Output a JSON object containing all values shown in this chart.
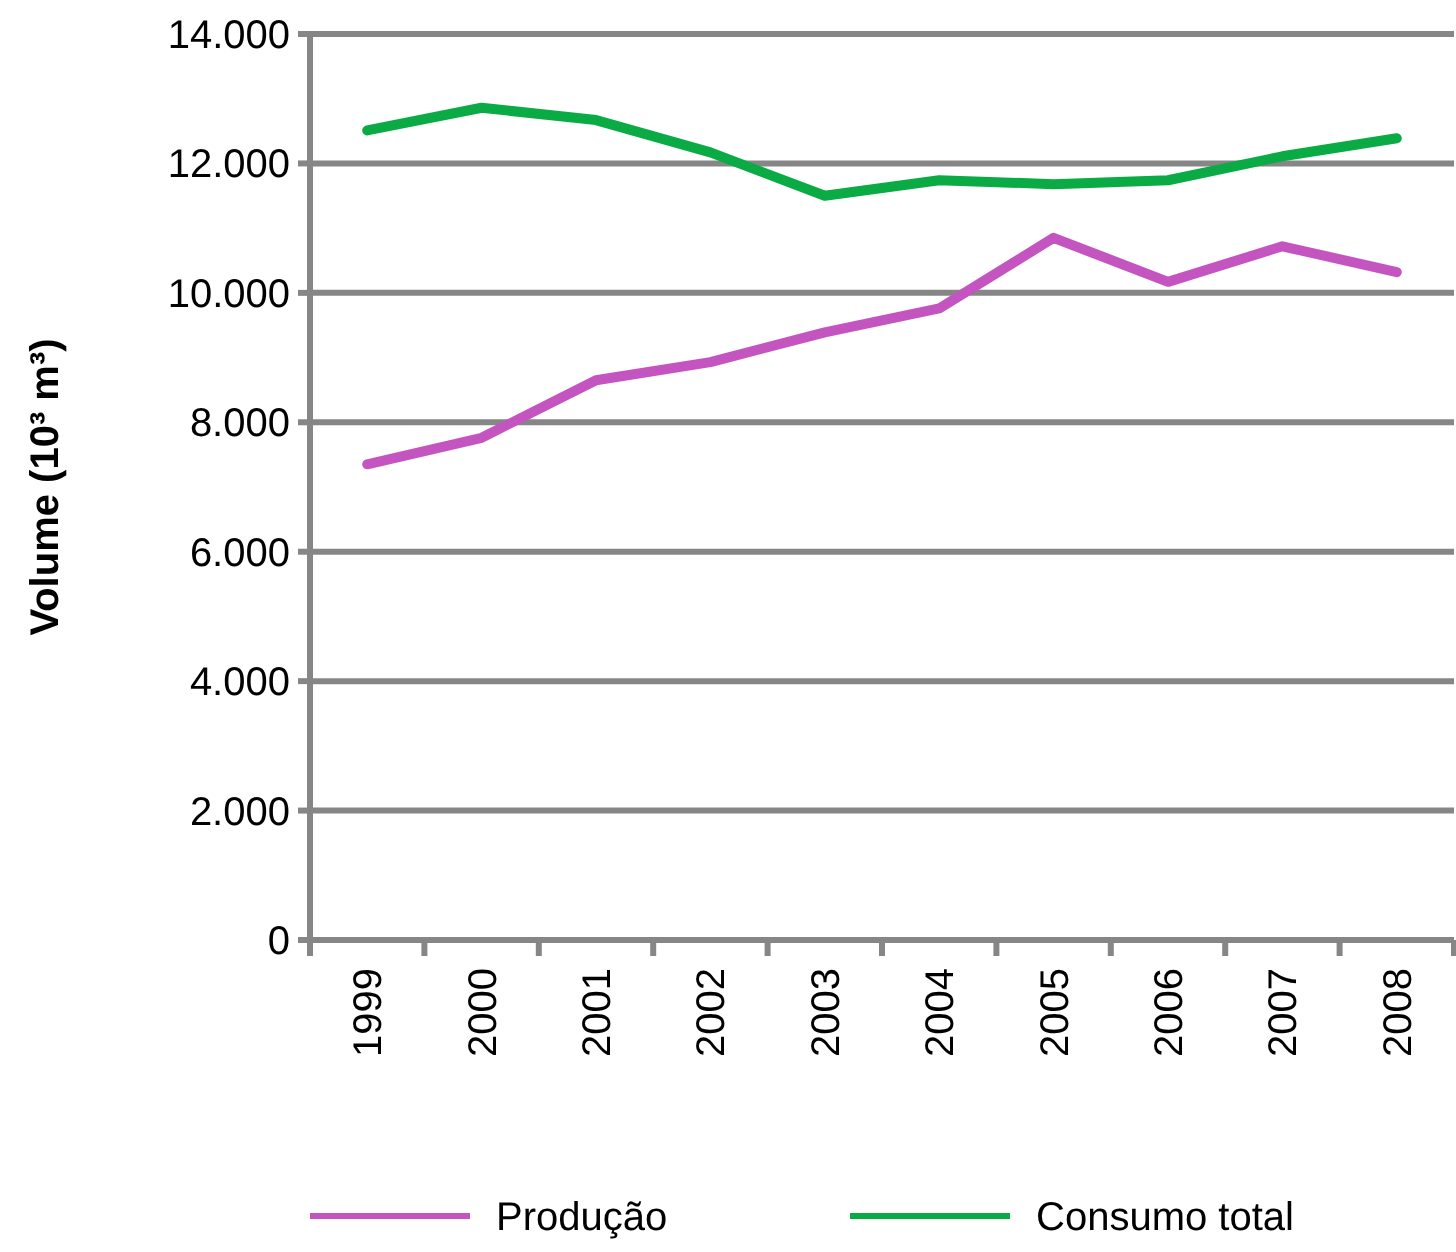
{
  "chart_data": {
    "type": "line",
    "ylabel": "Volume (10³ m³)",
    "categories": [
      "1999",
      "2000",
      "2001",
      "2002",
      "2003",
      "2004",
      "2005",
      "2006",
      "2007",
      "2008"
    ],
    "series": [
      {
        "name": "Produção",
        "color": "#c455c0",
        "values": [
          7350,
          7760,
          8650,
          8930,
          9390,
          9760,
          10850,
          10170,
          10720,
          10320
        ]
      },
      {
        "name": "Consumo total",
        "color": "#0aab44",
        "values": [
          12510,
          12860,
          12670,
          12170,
          11500,
          11740,
          11680,
          11740,
          12110,
          12390
        ]
      }
    ],
    "ylim": [
      0,
      14000
    ],
    "yticks": [
      {
        "value": 0,
        "label": "0"
      },
      {
        "value": 2000,
        "label": "2.000"
      },
      {
        "value": 4000,
        "label": "4.000"
      },
      {
        "value": 6000,
        "label": "6.000"
      },
      {
        "value": 8000,
        "label": "8.000"
      },
      {
        "value": 10000,
        "label": "10.000"
      },
      {
        "value": 12000,
        "label": "12.000"
      },
      {
        "value": 14000,
        "label": "14.000"
      }
    ],
    "grid": "y",
    "legend": "bottom",
    "marker": "none",
    "line_style": "solid"
  }
}
